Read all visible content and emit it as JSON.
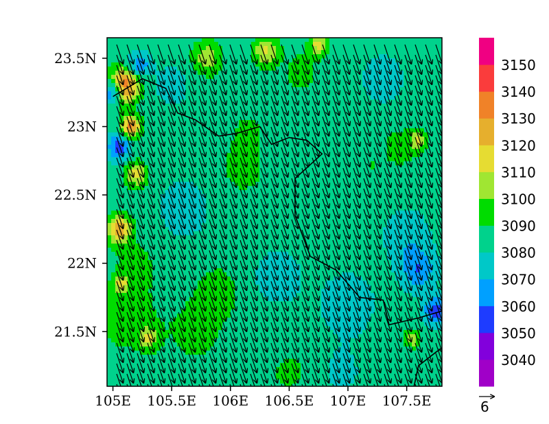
{
  "map": {
    "lon_range": [
      104.95,
      107.8
    ],
    "lat_range": [
      21.1,
      23.65
    ],
    "x_ticks": [
      {
        "value": 105.0,
        "label": "105E"
      },
      {
        "value": 105.5,
        "label": "105.5E"
      },
      {
        "value": 106.0,
        "label": "106E"
      },
      {
        "value": 106.5,
        "label": "106.5E"
      },
      {
        "value": 107.0,
        "label": "107E"
      },
      {
        "value": 107.5,
        "label": "107.5E"
      }
    ],
    "y_ticks": [
      {
        "value": 21.5,
        "label": "21.5N"
      },
      {
        "value": 22.0,
        "label": "22N"
      },
      {
        "value": 22.5,
        "label": "22.5N"
      },
      {
        "value": 23.0,
        "label": "23N"
      },
      {
        "value": 23.5,
        "label": "23.5N"
      }
    ],
    "field": "geopotential height contour fill with wind vectors (values 3030–3160)",
    "background_level": 3085,
    "features": [
      {
        "lon": 105.1,
        "lat": 23.3,
        "v": 3138,
        "s": 0.12
      },
      {
        "lon": 105.0,
        "lat": 23.25,
        "v": 3048,
        "s": 0.08
      },
      {
        "lon": 105.22,
        "lat": 23.45,
        "v": 3060,
        "s": 0.09
      },
      {
        "lon": 105.15,
        "lat": 23.0,
        "v": 3132,
        "s": 0.08
      },
      {
        "lon": 105.05,
        "lat": 22.85,
        "v": 3055,
        "s": 0.1
      },
      {
        "lon": 105.2,
        "lat": 22.65,
        "v": 3115,
        "s": 0.09
      },
      {
        "lon": 105.05,
        "lat": 22.25,
        "v": 3125,
        "s": 0.1
      },
      {
        "lon": 105.07,
        "lat": 21.85,
        "v": 3112,
        "s": 0.06
      },
      {
        "lon": 105.3,
        "lat": 21.45,
        "v": 3108,
        "s": 0.08
      },
      {
        "lon": 105.1,
        "lat": 21.6,
        "v": 3095,
        "s": 0.25
      },
      {
        "lon": 105.7,
        "lat": 21.5,
        "v": 3092,
        "s": 0.3
      },
      {
        "lon": 105.9,
        "lat": 21.8,
        "v": 3095,
        "s": 0.18
      },
      {
        "lon": 105.2,
        "lat": 22.0,
        "v": 3093,
        "s": 0.2
      },
      {
        "lon": 105.8,
        "lat": 23.5,
        "v": 3108,
        "s": 0.12
      },
      {
        "lon": 106.3,
        "lat": 23.55,
        "v": 3112,
        "s": 0.1
      },
      {
        "lon": 106.75,
        "lat": 23.6,
        "v": 3115,
        "s": 0.07
      },
      {
        "lon": 106.6,
        "lat": 23.4,
        "v": 3092,
        "s": 0.2
      },
      {
        "lon": 106.1,
        "lat": 22.7,
        "v": 3096,
        "s": 0.18
      },
      {
        "lon": 106.15,
        "lat": 22.95,
        "v": 3095,
        "s": 0.12
      },
      {
        "lon": 107.45,
        "lat": 22.85,
        "v": 3095,
        "s": 0.15
      },
      {
        "lon": 107.6,
        "lat": 22.9,
        "v": 3108,
        "s": 0.07
      },
      {
        "lon": 107.6,
        "lat": 21.95,
        "v": 3062,
        "s": 0.15
      },
      {
        "lon": 107.75,
        "lat": 21.65,
        "v": 3052,
        "s": 0.1
      },
      {
        "lon": 107.55,
        "lat": 21.45,
        "v": 3112,
        "s": 0.06
      },
      {
        "lon": 107.5,
        "lat": 22.2,
        "v": 3072,
        "s": 0.2
      },
      {
        "lon": 107.0,
        "lat": 21.7,
        "v": 3074,
        "s": 0.25
      },
      {
        "lon": 106.4,
        "lat": 21.9,
        "v": 3076,
        "s": 0.25
      },
      {
        "lon": 105.6,
        "lat": 22.4,
        "v": 3077,
        "s": 0.3
      },
      {
        "lon": 107.3,
        "lat": 23.35,
        "v": 3077,
        "s": 0.25
      },
      {
        "lon": 105.5,
        "lat": 23.3,
        "v": 3077,
        "s": 0.2
      },
      {
        "lon": 106.5,
        "lat": 21.2,
        "v": 3093,
        "s": 0.15
      },
      {
        "lon": 106.95,
        "lat": 21.2,
        "v": 3078,
        "s": 0.2
      },
      {
        "lon": 107.2,
        "lat": 22.7,
        "v": 3090,
        "s": 0.12
      }
    ],
    "wind": {
      "u": 1.5,
      "v": -4.5,
      "ref_label": "6"
    },
    "border_lonlat": [
      [
        105.0,
        23.22
      ],
      [
        105.25,
        23.35
      ],
      [
        105.45,
        23.28
      ],
      [
        105.55,
        23.1
      ],
      [
        105.7,
        23.05
      ],
      [
        105.9,
        22.93
      ],
      [
        106.05,
        22.95
      ],
      [
        106.25,
        23.0
      ],
      [
        106.35,
        22.87
      ],
      [
        106.5,
        22.92
      ],
      [
        106.65,
        22.9
      ],
      [
        106.78,
        22.8
      ],
      [
        106.55,
        22.62
      ],
      [
        106.55,
        22.35
      ],
      [
        106.68,
        22.05
      ],
      [
        106.9,
        21.95
      ],
      [
        107.1,
        21.75
      ],
      [
        107.3,
        21.73
      ],
      [
        107.35,
        21.55
      ],
      [
        107.6,
        21.6
      ],
      [
        107.8,
        21.65
      ]
    ],
    "coast_lonlat": [
      [
        107.55,
        21.05
      ],
      [
        107.6,
        21.25
      ],
      [
        107.75,
        21.35
      ],
      [
        107.8,
        21.38
      ]
    ]
  },
  "colorbar": {
    "levels": [
      3040,
      3050,
      3060,
      3070,
      3080,
      3090,
      3100,
      3110,
      3120,
      3130,
      3140,
      3150
    ],
    "colors": [
      "#a000c8",
      "#8200dc",
      "#1e3cff",
      "#00a0ff",
      "#00c8c8",
      "#00d28c",
      "#00dc00",
      "#a0e632",
      "#e6dc32",
      "#e6af2d",
      "#f08228",
      "#fa3c3c",
      "#f00082"
    ]
  }
}
